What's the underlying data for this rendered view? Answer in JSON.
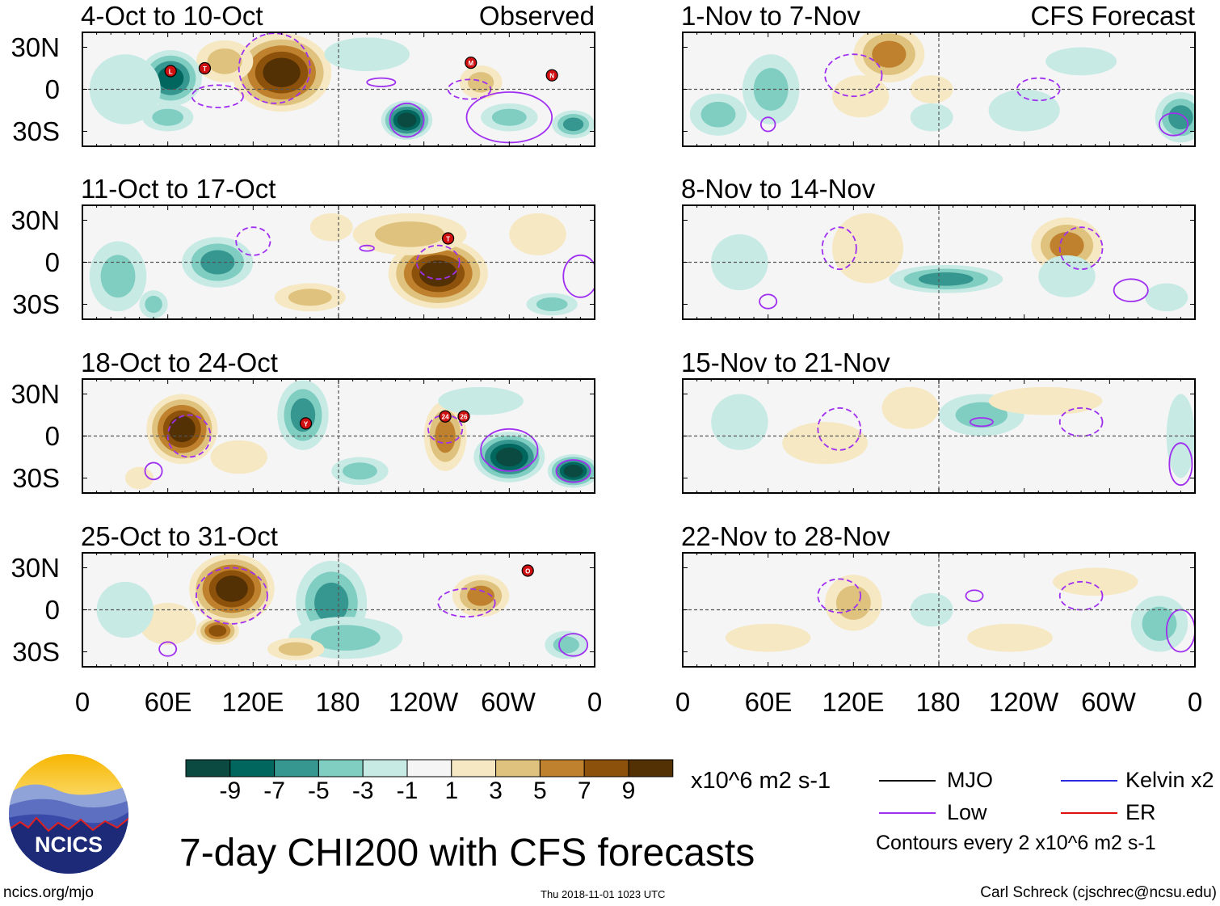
{
  "title": "7-day CHI200 with CFS forecasts",
  "columns": {
    "left_label": "Observed",
    "right_label": "CFS Forecast"
  },
  "axes": {
    "y_ticks": [
      "30N",
      "0",
      "30S"
    ],
    "x_ticks": [
      "0",
      "60E",
      "120E",
      "180",
      "120W",
      "60W",
      "0"
    ]
  },
  "chart_data": [
    {
      "type": "heatmap",
      "title": "4-Oct to 10-Oct",
      "label": "Observed",
      "lon_range": [
        0,
        360
      ],
      "lat_range": [
        -40,
        40
      ],
      "storms": [
        {
          "id": "L",
          "lon": 62,
          "lat": 13
        },
        {
          "id": "T",
          "lon": 86,
          "lat": 15
        },
        {
          "id": "M",
          "lon": 273,
          "lat": 19
        },
        {
          "id": "N",
          "lon": 330,
          "lat": 10
        }
      ]
    },
    {
      "type": "heatmap",
      "title": "11-Oct to 17-Oct",
      "label": "Observed",
      "lon_range": [
        0,
        360
      ],
      "lat_range": [
        -40,
        40
      ],
      "storms": [
        {
          "id": "T",
          "lon": 257,
          "lat": 17
        }
      ]
    },
    {
      "type": "heatmap",
      "title": "18-Oct to 24-Oct",
      "label": "Observed",
      "lon_range": [
        0,
        360
      ],
      "lat_range": [
        -40,
        40
      ],
      "storms": [
        {
          "id": "Y",
          "lon": 157,
          "lat": 9
        },
        {
          "id": "24",
          "lon": 255,
          "lat": 14
        },
        {
          "id": "26",
          "lon": 268,
          "lat": 14
        }
      ]
    },
    {
      "type": "heatmap",
      "title": "25-Oct to 31-Oct",
      "label": "Observed",
      "lon_range": [
        0,
        360
      ],
      "lat_range": [
        -40,
        40
      ],
      "storms": [
        {
          "id": "O",
          "lon": 313,
          "lat": 28
        }
      ]
    },
    {
      "type": "heatmap",
      "title": "1-Nov to 7-Nov",
      "label": "CFS Forecast",
      "lon_range": [
        0,
        360
      ],
      "lat_range": [
        -40,
        40
      ],
      "storms": []
    },
    {
      "type": "heatmap",
      "title": "8-Nov to 14-Nov",
      "label": "CFS Forecast",
      "lon_range": [
        0,
        360
      ],
      "lat_range": [
        -40,
        40
      ],
      "storms": []
    },
    {
      "type": "heatmap",
      "title": "15-Nov to 21-Nov",
      "label": "CFS Forecast",
      "lon_range": [
        0,
        360
      ],
      "lat_range": [
        -40,
        40
      ],
      "storms": []
    },
    {
      "type": "heatmap",
      "title": "22-Nov to 28-Nov",
      "label": "CFS Forecast",
      "lon_range": [
        0,
        360
      ],
      "lat_range": [
        -40,
        40
      ],
      "storms": []
    }
  ],
  "colorbar": {
    "labels": [
      "-9",
      "-7",
      "-5",
      "-3",
      "-1",
      "1",
      "3",
      "5",
      "7",
      "9"
    ],
    "colors": [
      "#0b4a40",
      "#01665e",
      "#35978f",
      "#80cdc1",
      "#c7eae5",
      "#f5f5f5",
      "#f6e8c3",
      "#dfc27d",
      "#bf812d",
      "#8c510a",
      "#543005"
    ],
    "units": "x10^6 m2 s-1"
  },
  "legend": {
    "mjo": "MJO",
    "mjo_color": "#000000",
    "kelvin": "Kelvin x2",
    "kelvin_color": "#2a2ae0",
    "low": "Low",
    "low_color": "#a030f0",
    "er": "ER",
    "er_color": "#e01010",
    "contours": "Contours every 2 x10^6 m2 s-1"
  },
  "logo": {
    "text": "NCICS"
  },
  "footer": {
    "url": "ncics.org/mjo",
    "timestamp": "Thu 2018-11-01 1023 UTC",
    "author": "Carl Schreck (cjschrec@ncsu.edu)"
  }
}
